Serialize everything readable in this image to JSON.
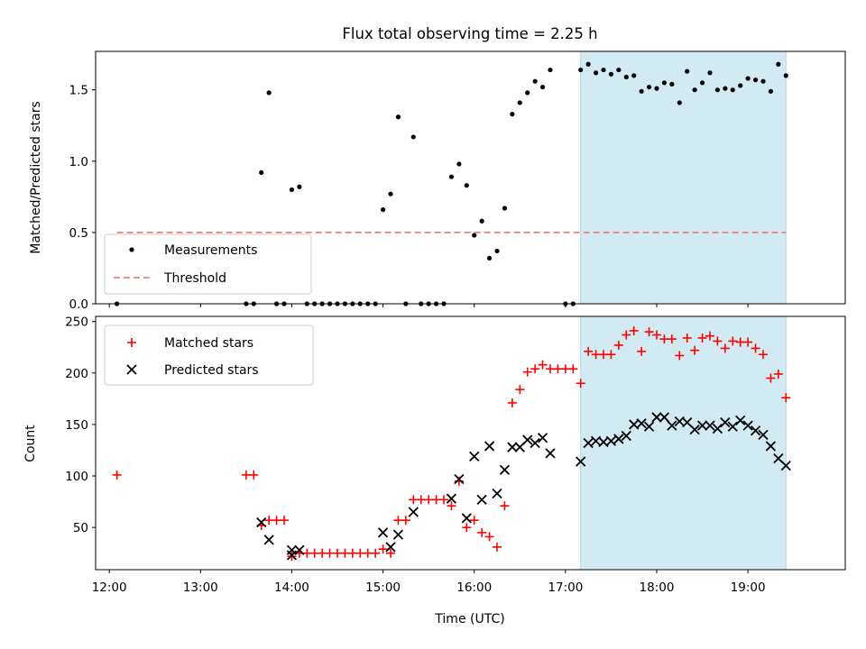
{
  "figure": {
    "title": "Flux total observing time = 2.25 h"
  },
  "colors": {
    "measurement": "#000000",
    "threshold": "#f08080",
    "matched": "#ff0000",
    "predicted": "#000000",
    "span": "#add8e6"
  },
  "chart_data": [
    {
      "type": "scatter",
      "panel": "top",
      "title": "Flux total observing time = 2.25 h",
      "xlabel": "",
      "ylabel": "Matched/Predicted stars",
      "xlim": [
        "11:51",
        "20:04"
      ],
      "ylim": [
        0,
        1.77
      ],
      "yticks": [
        0.0,
        0.5,
        1.0,
        1.5
      ],
      "ytick_labels": [
        "0.0",
        "0.5",
        "1.0",
        "1.5"
      ],
      "highlight_span": [
        "17:10",
        "19:25"
      ],
      "legend_position": "lower left",
      "threshold": {
        "name": "Threshold",
        "y": 0.5,
        "x_range": [
          "12:05",
          "19:25"
        ],
        "style": "dashed"
      },
      "series": [
        {
          "name": "Measurements",
          "marker": "dot",
          "points": [
            [
              "12:05",
              0.0
            ],
            [
              "13:30",
              0.0
            ],
            [
              "13:35",
              0.0
            ],
            [
              "13:40",
              0.92
            ],
            [
              "13:45",
              1.48
            ],
            [
              "13:50",
              0.0
            ],
            [
              "13:55",
              0.0
            ],
            [
              "14:00",
              0.8
            ],
            [
              "14:05",
              0.82
            ],
            [
              "14:10",
              0.0
            ],
            [
              "14:15",
              0.0
            ],
            [
              "14:20",
              0.0
            ],
            [
              "14:25",
              0.0
            ],
            [
              "14:30",
              0.0
            ],
            [
              "14:35",
              0.0
            ],
            [
              "14:40",
              0.0
            ],
            [
              "14:45",
              0.0
            ],
            [
              "14:50",
              0.0
            ],
            [
              "14:55",
              0.0
            ],
            [
              "15:00",
              0.66
            ],
            [
              "15:05",
              0.77
            ],
            [
              "15:10",
              1.31
            ],
            [
              "15:15",
              0.0
            ],
            [
              "15:20",
              1.17
            ],
            [
              "15:25",
              0.0
            ],
            [
              "15:30",
              0.0
            ],
            [
              "15:35",
              0.0
            ],
            [
              "15:40",
              0.0
            ],
            [
              "15:45",
              0.89
            ],
            [
              "15:50",
              0.98
            ],
            [
              "15:55",
              0.83
            ],
            [
              "16:00",
              0.48
            ],
            [
              "16:05",
              0.58
            ],
            [
              "16:10",
              0.32
            ],
            [
              "16:15",
              0.37
            ],
            [
              "16:20",
              0.67
            ],
            [
              "16:25",
              1.33
            ],
            [
              "16:30",
              1.41
            ],
            [
              "16:35",
              1.48
            ],
            [
              "16:40",
              1.56
            ],
            [
              "16:45",
              1.52
            ],
            [
              "16:50",
              1.64
            ],
            [
              "17:00",
              0.0
            ],
            [
              "17:05",
              0.0
            ],
            [
              "17:10",
              1.64
            ],
            [
              "17:15",
              1.68
            ],
            [
              "17:20",
              1.62
            ],
            [
              "17:25",
              1.64
            ],
            [
              "17:30",
              1.61
            ],
            [
              "17:35",
              1.64
            ],
            [
              "17:40",
              1.59
            ],
            [
              "17:45",
              1.6
            ],
            [
              "17:50",
              1.49
            ],
            [
              "17:55",
              1.52
            ],
            [
              "18:00",
              1.51
            ],
            [
              "18:05",
              1.55
            ],
            [
              "18:10",
              1.54
            ],
            [
              "18:15",
              1.41
            ],
            [
              "18:20",
              1.63
            ],
            [
              "18:25",
              1.5
            ],
            [
              "18:30",
              1.55
            ],
            [
              "18:35",
              1.62
            ],
            [
              "18:40",
              1.5
            ],
            [
              "18:45",
              1.51
            ],
            [
              "18:50",
              1.5
            ],
            [
              "18:55",
              1.53
            ],
            [
              "19:00",
              1.58
            ],
            [
              "19:05",
              1.57
            ],
            [
              "19:10",
              1.56
            ],
            [
              "19:15",
              1.49
            ],
            [
              "19:20",
              1.68
            ],
            [
              "19:25",
              1.6
            ]
          ]
        }
      ]
    },
    {
      "type": "scatter",
      "panel": "bottom",
      "xlabel": "Time (UTC)",
      "ylabel": "Count",
      "xlim": [
        "11:51",
        "20:04"
      ],
      "ylim": [
        9,
        255
      ],
      "xticks": [
        "12:00",
        "13:00",
        "14:00",
        "15:00",
        "16:00",
        "17:00",
        "18:00",
        "19:00"
      ],
      "yticks": [
        50,
        100,
        150,
        200,
        250
      ],
      "ytick_labels": [
        "50",
        "100",
        "150",
        "200",
        "250"
      ],
      "highlight_span": [
        "17:10",
        "19:25"
      ],
      "legend_position": "upper left",
      "series": [
        {
          "name": "Matched stars",
          "marker": "plus",
          "points": [
            [
              "12:05",
              101
            ],
            [
              "13:30",
              101
            ],
            [
              "13:35",
              101
            ],
            [
              "13:40",
              52
            ],
            [
              "13:45",
              57
            ],
            [
              "13:50",
              57
            ],
            [
              "13:55",
              57
            ],
            [
              "14:00",
              22
            ],
            [
              "14:05",
              25
            ],
            [
              "14:10",
              25
            ],
            [
              "14:15",
              25
            ],
            [
              "14:20",
              25
            ],
            [
              "14:25",
              25
            ],
            [
              "14:30",
              25
            ],
            [
              "14:35",
              25
            ],
            [
              "14:40",
              25
            ],
            [
              "14:45",
              25
            ],
            [
              "14:50",
              25
            ],
            [
              "14:55",
              25
            ],
            [
              "15:00",
              29
            ],
            [
              "15:05",
              25
            ],
            [
              "15:10",
              57
            ],
            [
              "15:15",
              57
            ],
            [
              "15:20",
              77
            ],
            [
              "15:25",
              77
            ],
            [
              "15:30",
              77
            ],
            [
              "15:35",
              77
            ],
            [
              "15:40",
              77
            ],
            [
              "15:45",
              71
            ],
            [
              "15:50",
              95
            ],
            [
              "15:55",
              50
            ],
            [
              "16:00",
              57
            ],
            [
              "16:05",
              45
            ],
            [
              "16:10",
              41
            ],
            [
              "16:15",
              31
            ],
            [
              "16:20",
              71
            ],
            [
              "16:25",
              171
            ],
            [
              "16:30",
              184
            ],
            [
              "16:35",
              201
            ],
            [
              "16:40",
              204
            ],
            [
              "16:45",
              208
            ],
            [
              "16:50",
              204
            ],
            [
              "16:55",
              204
            ],
            [
              "17:00",
              204
            ],
            [
              "17:05",
              204
            ],
            [
              "17:10",
              190
            ],
            [
              "17:15",
              221
            ],
            [
              "17:20",
              218
            ],
            [
              "17:25",
              218
            ],
            [
              "17:30",
              218
            ],
            [
              "17:35",
              227
            ],
            [
              "17:40",
              237
            ],
            [
              "17:45",
              241
            ],
            [
              "17:50",
              221
            ],
            [
              "17:55",
              240
            ],
            [
              "18:00",
              237
            ],
            [
              "18:05",
              233
            ],
            [
              "18:10",
              233
            ],
            [
              "18:15",
              217
            ],
            [
              "18:20",
              234
            ],
            [
              "18:25",
              222
            ],
            [
              "18:30",
              234
            ],
            [
              "18:35",
              236
            ],
            [
              "18:40",
              231
            ],
            [
              "18:45",
              224
            ],
            [
              "18:50",
              231
            ],
            [
              "18:55",
              230
            ],
            [
              "19:00",
              230
            ],
            [
              "19:05",
              224
            ],
            [
              "19:10",
              218
            ],
            [
              "19:15",
              195
            ],
            [
              "19:20",
              199
            ],
            [
              "19:25",
              176
            ]
          ]
        },
        {
          "name": "Predicted stars",
          "marker": "x",
          "points": [
            [
              "13:40",
              55
            ],
            [
              "13:45",
              38
            ],
            [
              "14:00",
              23
            ],
            [
              "14:00",
              28
            ],
            [
              "14:05",
              28
            ],
            [
              "15:00",
              45
            ],
            [
              "15:05",
              31
            ],
            [
              "15:10",
              43
            ],
            [
              "15:20",
              65
            ],
            [
              "15:45",
              78
            ],
            [
              "15:50",
              97
            ],
            [
              "15:55",
              59
            ],
            [
              "16:00",
              119
            ],
            [
              "16:05",
              77
            ],
            [
              "16:10",
              129
            ],
            [
              "16:15",
              83
            ],
            [
              "16:20",
              106
            ],
            [
              "16:25",
              128
            ],
            [
              "16:30",
              128
            ],
            [
              "16:35",
              135
            ],
            [
              "16:40",
              132
            ],
            [
              "16:45",
              137
            ],
            [
              "16:50",
              122
            ],
            [
              "17:10",
              114
            ],
            [
              "17:15",
              132
            ],
            [
              "17:20",
              134
            ],
            [
              "17:25",
              133
            ],
            [
              "17:30",
              134
            ],
            [
              "17:35",
              136
            ],
            [
              "17:40",
              139
            ],
            [
              "17:45",
              150
            ],
            [
              "17:50",
              151
            ],
            [
              "17:55",
              148
            ],
            [
              "18:00",
              157
            ],
            [
              "18:05",
              157
            ],
            [
              "18:10",
              149
            ],
            [
              "18:15",
              153
            ],
            [
              "18:20",
              152
            ],
            [
              "18:25",
              145
            ],
            [
              "18:30",
              149
            ],
            [
              "18:35",
              149
            ],
            [
              "18:40",
              146
            ],
            [
              "18:45",
              152
            ],
            [
              "18:50",
              148
            ],
            [
              "18:55",
              154
            ],
            [
              "19:00",
              149
            ],
            [
              "19:05",
              144
            ],
            [
              "19:10",
              140
            ],
            [
              "19:15",
              129
            ],
            [
              "19:20",
              117
            ],
            [
              "19:25",
              110
            ]
          ]
        }
      ]
    }
  ]
}
